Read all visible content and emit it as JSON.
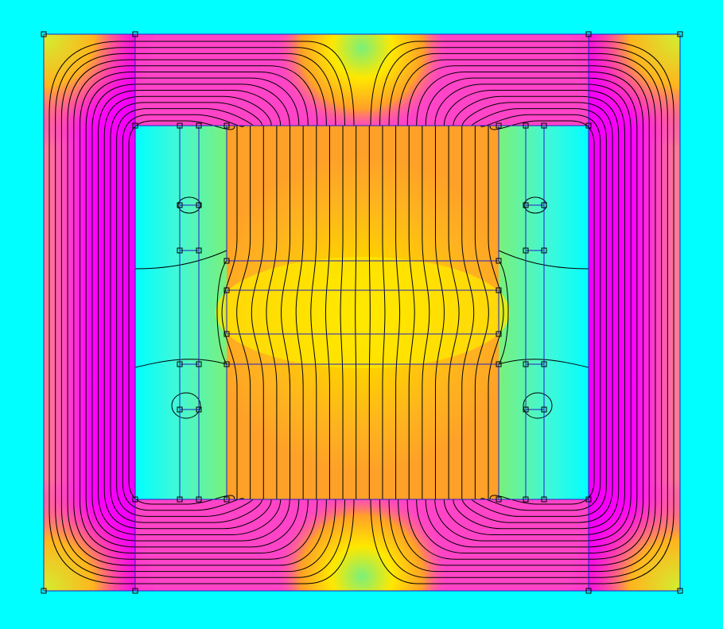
{
  "palette": {
    "background": "#00ffff",
    "magenta": "#ff00ff",
    "magenta_deep": "#f000f6",
    "pink": "#ff44c8",
    "salmon": "#ff7a96",
    "orange": "#ffa028",
    "orange_light": "#ffb41e",
    "amber": "#ffcc0a",
    "yellow": "#ffe800",
    "lime": "#d0f030",
    "green": "#7af07a",
    "cyan_light": "#40f8d8",
    "mesh_line": "#2020c8",
    "flux_line": "#000000",
    "node_fill": "#ffffff"
  },
  "icons": {
    "node": "square-node-icon"
  }
}
